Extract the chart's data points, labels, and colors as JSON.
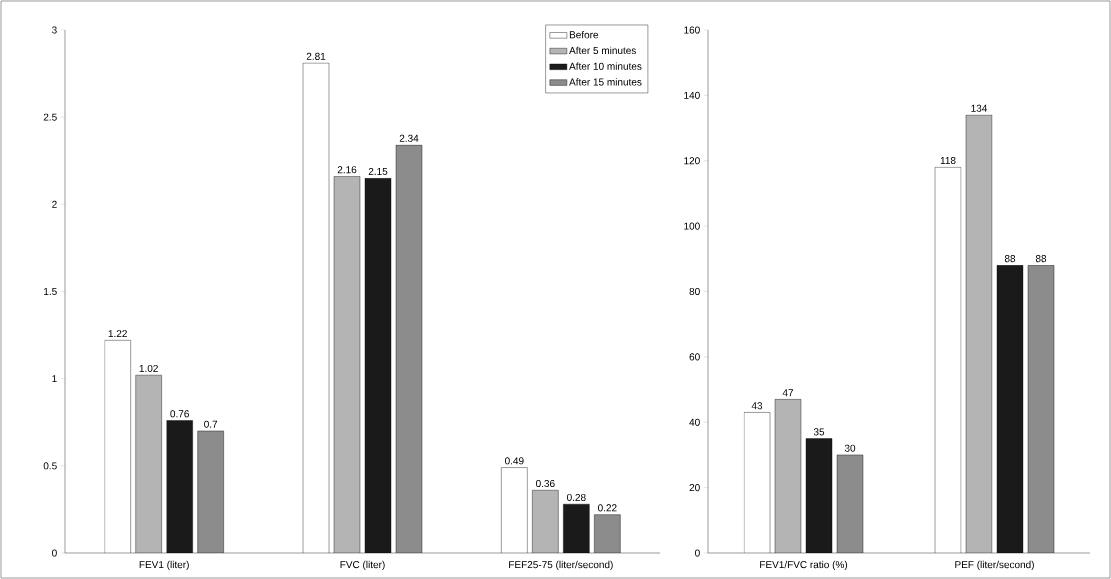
{
  "chart_data": [
    {
      "type": "bar",
      "categories": [
        "FEV1 (liter)",
        "FVC (liter)",
        "FEF25-75 (liter/second)"
      ],
      "ylim": [
        0,
        3
      ],
      "yticks": [
        0,
        0.5,
        1,
        1.5,
        2,
        2.5,
        3
      ],
      "data_labels": true,
      "legend": "top right",
      "series": [
        {
          "name": "Before",
          "color": "#ffffff",
          "values": [
            1.22,
            2.81,
            0.49
          ]
        },
        {
          "name": "After 5 minutes",
          "color": "#b4b4b4",
          "values": [
            1.02,
            2.16,
            0.36
          ]
        },
        {
          "name": "After 10 minutes",
          "color": "#1a1a1a",
          "values": [
            0.76,
            2.15,
            0.28
          ]
        },
        {
          "name": "After 15 minutes",
          "color": "#8c8c8c",
          "values": [
            0.7,
            2.34,
            0.22
          ]
        }
      ]
    },
    {
      "type": "bar",
      "categories": [
        "FEV1/FVC ratio (%)",
        "PEF (liter/second)"
      ],
      "ylim": [
        0,
        160
      ],
      "yticks": [
        0,
        20,
        40,
        60,
        80,
        100,
        120,
        140,
        160
      ],
      "data_labels": true,
      "series": [
        {
          "color": "#ffffff",
          "values": [
            43,
            118
          ]
        },
        {
          "color": "#b4b4b4",
          "values": [
            47,
            134
          ]
        },
        {
          "color": "#1a1a1a",
          "values": [
            35,
            88
          ]
        },
        {
          "color": "#8c8c8c",
          "values": [
            30,
            88
          ]
        }
      ]
    }
  ]
}
